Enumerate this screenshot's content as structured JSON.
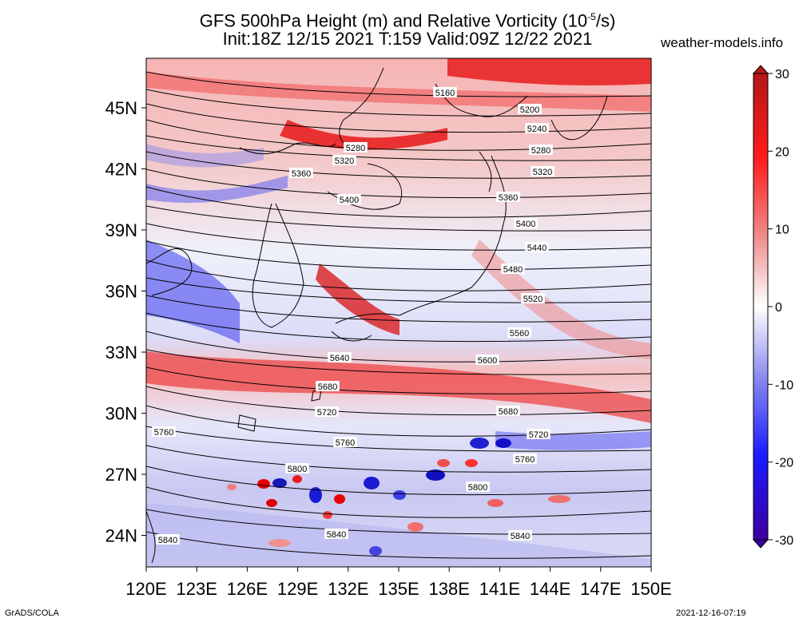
{
  "title": {
    "line1_prefix": "GFS 500hPa Height (m) and Relative Vorticity (10",
    "line1_exp": "-5",
    "line1_suffix": "/s)",
    "line2": "Init:18Z 12/15 2021 T:159 Valid:09Z 12/22 2021"
  },
  "brand": "weather-models.info",
  "footer": {
    "left": "GrADS/COLA",
    "right": "2021-12-16-07:19"
  },
  "axes": {
    "lat_labels": [
      "45N",
      "42N",
      "39N",
      "36N",
      "33N",
      "30N",
      "27N",
      "24N"
    ],
    "lon_labels": [
      "120E",
      "123E",
      "126E",
      "129E",
      "132E",
      "135E",
      "138E",
      "141E",
      "144E",
      "147E",
      "150E"
    ]
  },
  "colorbar": {
    "ticks": [
      "30",
      "20",
      "10",
      "0",
      "-10",
      "-20",
      "-30"
    ],
    "colors": {
      "max": "#b41818",
      "strong_pos": "#ff1a1a",
      "pos": "#f08c8c",
      "zero": "#ffffff",
      "neg": "#8c8cf0",
      "strong_neg": "#1a1aff",
      "min": "#3c00a0"
    }
  },
  "contours": [
    {
      "label": "5160"
    },
    {
      "label": "5200"
    },
    {
      "label": "5240"
    },
    {
      "label": "5280"
    },
    {
      "label": "5280"
    },
    {
      "label": "5320"
    },
    {
      "label": "5320"
    },
    {
      "label": "5360"
    },
    {
      "label": "5360"
    },
    {
      "label": "5400"
    },
    {
      "label": "5400"
    },
    {
      "label": "5440"
    },
    {
      "label": "5480"
    },
    {
      "label": "5520"
    },
    {
      "label": "5560"
    },
    {
      "label": "5600"
    },
    {
      "label": "5640"
    },
    {
      "label": "5680"
    },
    {
      "label": "5680"
    },
    {
      "label": "5720"
    },
    {
      "label": "5720"
    },
    {
      "label": "5760"
    },
    {
      "label": "5760"
    },
    {
      "label": "5760"
    },
    {
      "label": "5800"
    },
    {
      "label": "5800"
    },
    {
      "label": "5840"
    },
    {
      "label": "5840"
    },
    {
      "label": "5840"
    }
  ]
}
